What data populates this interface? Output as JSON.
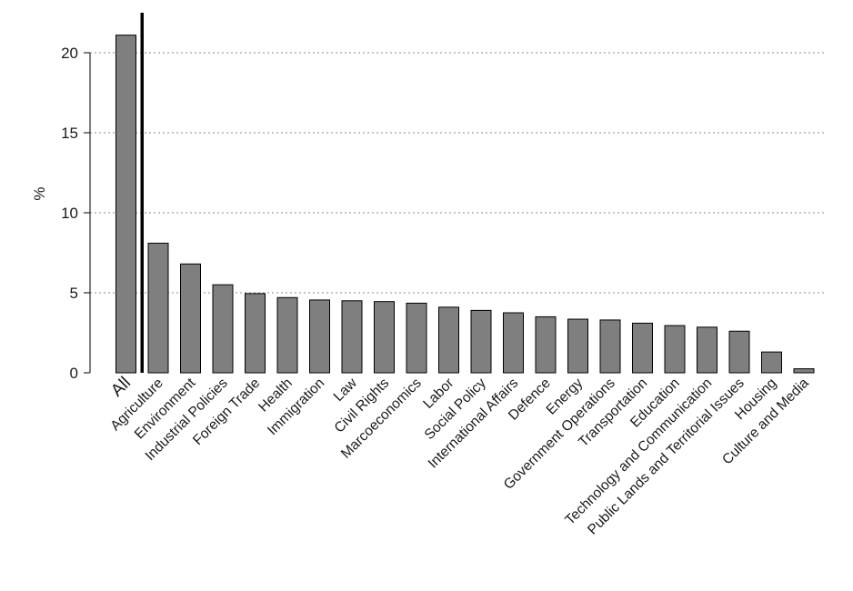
{
  "chart_data": {
    "type": "bar",
    "title": "",
    "xlabel": "",
    "ylabel": "%",
    "ylim": [
      0,
      22.5
    ],
    "yticks": [
      0,
      5,
      10,
      15,
      20
    ],
    "grid": true,
    "categories": [
      "All",
      "Agriculture",
      "Environment",
      "Industrial Policies",
      "Foreign Trade",
      "Health",
      "Immigration",
      "Law",
      "Civil Rights",
      "Marcoeconomics",
      "Labor",
      "Social Policy",
      "International Affairs",
      "Defence",
      "Energy",
      "Government Operations",
      "Transportation",
      "Education",
      "Technology and Communication",
      "Public Lands and Territorial Issues",
      "Housing",
      "Culture and Media"
    ],
    "values": [
      21.1,
      8.1,
      6.8,
      5.5,
      4.95,
      4.7,
      4.55,
      4.5,
      4.45,
      4.35,
      4.1,
      3.9,
      3.75,
      3.5,
      3.35,
      3.3,
      3.1,
      2.95,
      2.85,
      2.6,
      1.3,
      0.25
    ],
    "separator_after": "All"
  }
}
